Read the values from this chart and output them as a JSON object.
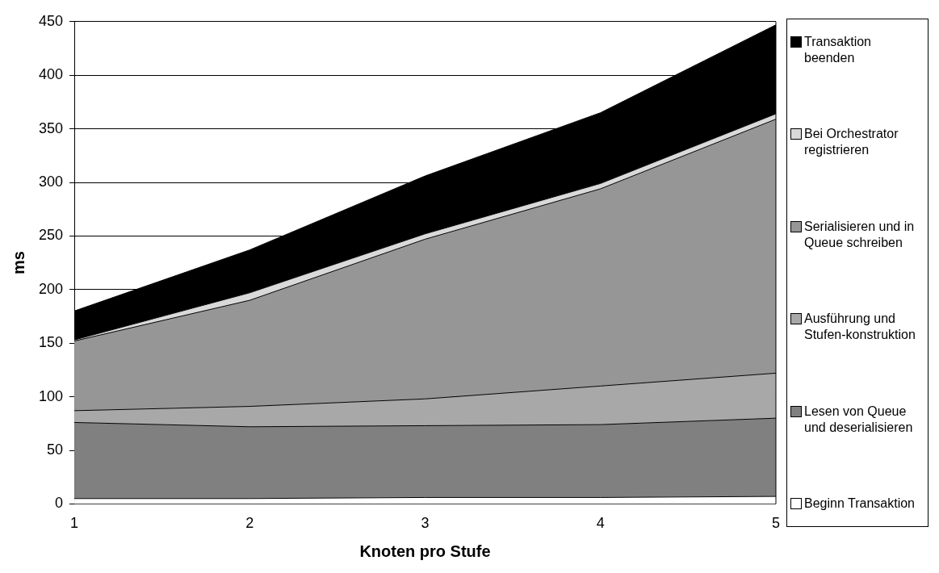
{
  "chart_data": {
    "type": "area",
    "xlabel": "Knoten pro Stufe",
    "ylabel": "ms",
    "x": [
      1,
      2,
      3,
      4,
      5
    ],
    "xlim": [
      1,
      5
    ],
    "xticks": [
      1,
      2,
      3,
      4,
      5
    ],
    "ylim": [
      0,
      450
    ],
    "yticks": [
      0,
      50,
      100,
      150,
      200,
      250,
      300,
      350,
      400,
      450
    ],
    "stacked": true,
    "grid": "y",
    "legend": "right",
    "series": [
      {
        "name": "Beginn Transaktion",
        "color": "#ffffff",
        "values": [
          5,
          5,
          6,
          6,
          7
        ]
      },
      {
        "name": "Lesen von Queue und deserialisieren",
        "color": "#808080",
        "values": [
          71,
          67,
          67,
          68,
          73
        ]
      },
      {
        "name": "Ausführung und Stufen-konstruktion",
        "color": "#a8a8a8",
        "values": [
          11,
          19,
          25,
          36,
          42
        ]
      },
      {
        "name": "Serialisieren und in Queue schreiben",
        "color": "#969696",
        "values": [
          65,
          99,
          149,
          184,
          237
        ]
      },
      {
        "name": "Bei Orchestrator registrieren",
        "color": "#d9d9d9",
        "values": [
          1,
          7,
          5,
          5,
          5
        ]
      },
      {
        "name": "Transaktion beenden",
        "color": "#000000",
        "values": [
          27,
          40,
          54,
          66,
          83
        ]
      }
    ]
  }
}
